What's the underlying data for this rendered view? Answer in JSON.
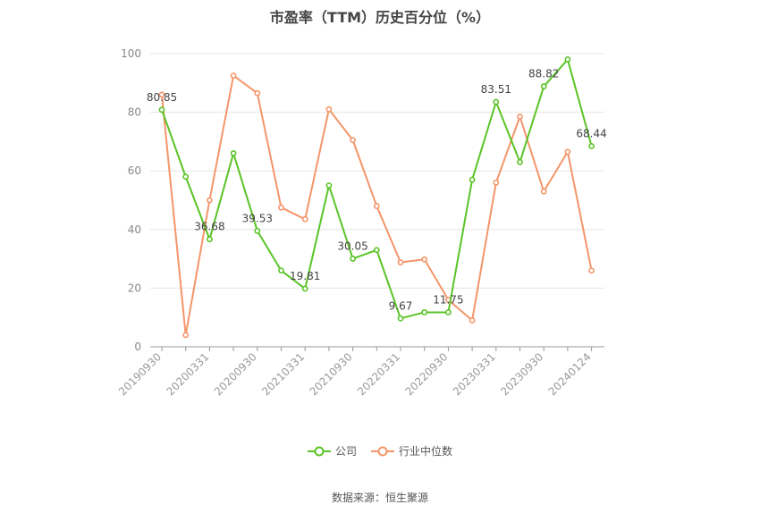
{
  "chart_data": {
    "type": "line",
    "title": "市盈率（TTM）历史百分位（%）",
    "x": [
      "20190930",
      "20191231",
      "20200331",
      "20200630",
      "20200930",
      "20201231",
      "20210331",
      "20210630",
      "20210930",
      "20211231",
      "20220331",
      "20220630",
      "20220930",
      "20221231",
      "20230331",
      "20230630",
      "20230930",
      "20231231",
      "20240124"
    ],
    "x_tick_labels": [
      "20190930",
      "20200331",
      "20200930",
      "20210331",
      "20210930",
      "20220331",
      "20220930",
      "20230331",
      "20230930",
      "20240124"
    ],
    "ylim": [
      0,
      100
    ],
    "yticks": [
      0,
      20,
      40,
      60,
      80,
      100
    ],
    "grid": true,
    "legend_position": "bottom",
    "series": [
      {
        "name": "公司",
        "color": "#5ac427",
        "values": [
          80.85,
          58,
          36.68,
          66,
          39.53,
          26,
          19.81,
          55,
          30.05,
          33,
          9.67,
          11.75,
          11.75,
          57,
          83.51,
          63,
          88.82,
          98,
          68.44
        ],
        "labels": {
          "0": "80.85",
          "2": "36.68",
          "4": "39.53",
          "6": "19.81",
          "8": "30.05",
          "10": "9.67",
          "12": "11.75",
          "14": "83.51",
          "16": "88.82",
          "18": "68.44"
        }
      },
      {
        "name": "行业中位数",
        "color": "#f4956a",
        "values": [
          86,
          4,
          50,
          92.5,
          86.5,
          47.5,
          43.5,
          81,
          70.5,
          48,
          28.8,
          29.8,
          16,
          9,
          56,
          78.5,
          53,
          66.5,
          26
        ]
      }
    ]
  },
  "source_text": "数据来源：恒生聚源"
}
